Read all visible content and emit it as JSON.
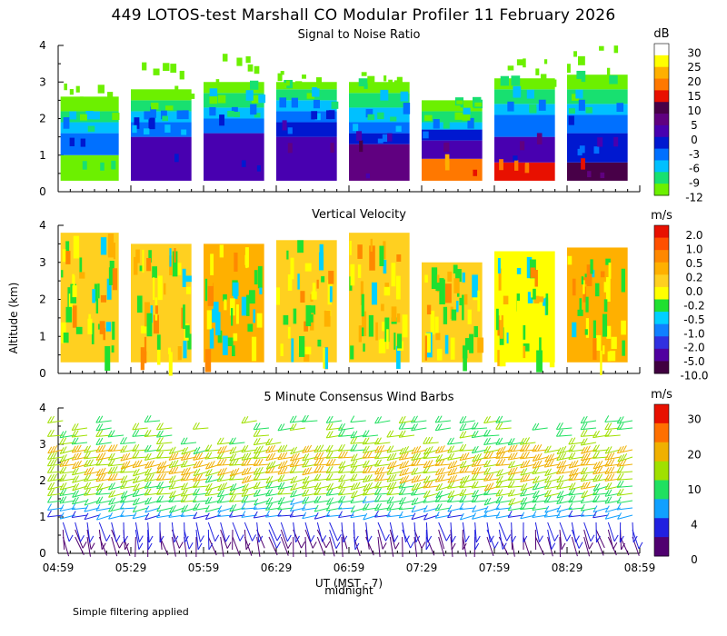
{
  "title": "449 LOTOS-test Marshall CO Modular Profiler 11 February 2026",
  "ylabel": "Altitude (km)",
  "xlabel": "UT (MST - 7)",
  "midnight_label": "midnight",
  "footnote": "Simple filtering applied",
  "colors": {
    "snr_scale": [
      "#6cf000",
      "#18e070",
      "#00c0ff",
      "#0070ff",
      "#0018d0",
      "#4800b0",
      "#600080",
      "#480048",
      "#e81000",
      "#ff7800",
      "#ffb000",
      "#ffff00",
      "#ffffff"
    ],
    "vv_scale": [
      "#400040",
      "#5000a0",
      "#3030e0",
      "#1080ff",
      "#00d0ff",
      "#20e030",
      "#ffff00",
      "#ffd020",
      "#ffb000",
      "#ff8800",
      "#ff5000",
      "#e81000"
    ],
    "wind_scale": [
      "#500070",
      "#2020e0",
      "#10a0ff",
      "#20e060",
      "#a0e000",
      "#f0b000",
      "#ff7000",
      "#e81000"
    ]
  },
  "chart_data": [
    {
      "type": "heatmap",
      "title": "Signal to Noise Ratio",
      "units": "dB",
      "ylim": [
        0,
        4
      ],
      "yticks": [
        "0",
        "1",
        "2",
        "3",
        "4"
      ],
      "x_ticks": [
        "04:59",
        "05:29",
        "05:59",
        "06:29",
        "06:59",
        "07:29",
        "07:59",
        "08:29",
        "08:59"
      ],
      "colorbar_labels": [
        "30",
        "25",
        "20",
        "15",
        "10",
        "5",
        "0",
        "-3",
        "-6",
        "-9",
        "-12"
      ],
      "segments": [
        {
          "start": "05:00",
          "end": "05:24",
          "top_km": 3.0,
          "layers": [
            [
              0.3,
              1.0,
              0
            ],
            [
              1.0,
              1.6,
              3
            ],
            [
              1.6,
              1.9,
              2
            ],
            [
              1.9,
              2.2,
              1
            ],
            [
              2.2,
              2.6,
              0
            ]
          ]
        },
        {
          "start": "05:29",
          "end": "05:54",
          "top_km": 3.5,
          "layers": [
            [
              0.3,
              1.5,
              5
            ],
            [
              1.5,
              1.9,
              3
            ],
            [
              1.9,
              2.2,
              2
            ],
            [
              2.2,
              2.5,
              1
            ],
            [
              2.5,
              2.8,
              0
            ]
          ]
        },
        {
          "start": "05:59",
          "end": "06:24",
          "top_km": 3.5,
          "layers": [
            [
              0.3,
              1.6,
              5
            ],
            [
              1.6,
              2.0,
              3
            ],
            [
              2.0,
              2.3,
              2
            ],
            [
              2.3,
              2.7,
              1
            ],
            [
              2.7,
              3.0,
              0
            ]
          ]
        },
        {
          "start": "06:29",
          "end": "06:54",
          "top_km": 3.0,
          "layers": [
            [
              0.3,
              1.5,
              5
            ],
            [
              1.5,
              1.9,
              4
            ],
            [
              1.9,
              2.2,
              3
            ],
            [
              2.2,
              2.5,
              2
            ],
            [
              2.5,
              2.8,
              1
            ],
            [
              2.8,
              3.0,
              0
            ]
          ]
        },
        {
          "start": "06:59",
          "end": "07:24",
          "top_km": 3.0,
          "layers": [
            [
              0.3,
              1.3,
              6
            ],
            [
              1.3,
              1.6,
              4
            ],
            [
              1.6,
              1.9,
              3
            ],
            [
              1.9,
              2.3,
              2
            ],
            [
              2.3,
              2.7,
              1
            ],
            [
              2.7,
              3.0,
              0
            ]
          ]
        },
        {
          "start": "07:29",
          "end": "07:54",
          "top_km": 2.5,
          "layers": [
            [
              0.3,
              0.9,
              9
            ],
            [
              0.9,
              1.4,
              5
            ],
            [
              1.4,
              1.7,
              4
            ],
            [
              1.7,
              1.9,
              2
            ],
            [
              1.9,
              2.2,
              1
            ],
            [
              2.2,
              2.5,
              0
            ]
          ]
        },
        {
          "start": "07:59",
          "end": "08:24",
          "top_km": 3.2,
          "layers": [
            [
              0.3,
              0.8,
              8
            ],
            [
              0.8,
              1.5,
              5
            ],
            [
              1.5,
              2.1,
              3
            ],
            [
              2.1,
              2.4,
              2
            ],
            [
              2.4,
              2.8,
              1
            ],
            [
              2.8,
              3.1,
              0
            ]
          ]
        },
        {
          "start": "08:29",
          "end": "08:54",
          "top_km": 3.4,
          "layers": [
            [
              0.3,
              0.8,
              7
            ],
            [
              0.8,
              1.6,
              4
            ],
            [
              1.6,
              2.1,
              3
            ],
            [
              2.1,
              2.4,
              2
            ],
            [
              2.4,
              2.8,
              1
            ],
            [
              2.8,
              3.2,
              0
            ]
          ]
        }
      ]
    },
    {
      "type": "heatmap",
      "title": "Vertical Velocity",
      "units": "m/s",
      "ylim": [
        0,
        4
      ],
      "yticks": [
        "0",
        "1",
        "2",
        "3",
        "4"
      ],
      "x_ticks": [
        "04:59",
        "05:29",
        "05:59",
        "06:29",
        "06:59",
        "07:29",
        "07:59",
        "08:29",
        "08:59"
      ],
      "colorbar_labels": [
        "2.0",
        "1.0",
        "0.5",
        "0.2",
        "0.0",
        "-0.2",
        "-0.5",
        "-1.0",
        "-2.0",
        "-5.0",
        "-10.0"
      ],
      "segments": [
        {
          "start": "05:00",
          "end": "05:24",
          "top_km": 3.8,
          "dominant": "0.0 to 0.2"
        },
        {
          "start": "05:29",
          "end": "05:54",
          "top_km": 3.5,
          "dominant": "0.0 to 0.2"
        },
        {
          "start": "05:59",
          "end": "06:24",
          "top_km": 3.5,
          "dominant": "0.2 to 0.5"
        },
        {
          "start": "06:29",
          "end": "06:54",
          "top_km": 3.6,
          "dominant": "0.0 to 0.2"
        },
        {
          "start": "06:59",
          "end": "07:24",
          "top_km": 3.8,
          "dominant": "0.0 to 0.2"
        },
        {
          "start": "07:29",
          "end": "07:54",
          "top_km": 3.0,
          "dominant": "0.0 to 0.2"
        },
        {
          "start": "07:59",
          "end": "08:24",
          "top_km": 3.3,
          "dominant": "-0.2 to 0.0"
        },
        {
          "start": "08:29",
          "end": "08:54",
          "top_km": 3.4,
          "dominant": "0.2 to 0.5"
        }
      ]
    },
    {
      "type": "wind_barbs",
      "title": "5 Minute Consensus Wind Barbs",
      "units": "m/s",
      "ylim": [
        0,
        4
      ],
      "yticks": [
        "0",
        "1",
        "2",
        "3",
        "4"
      ],
      "x_ticks": [
        "04:59",
        "05:29",
        "05:59",
        "06:29",
        "06:59",
        "07:29",
        "07:59",
        "08:29",
        "08:59"
      ],
      "colorbar_labels": [
        "30",
        "20",
        "10",
        "4",
        "0"
      ],
      "speed_profile_mps": [
        {
          "alt_km": 0.5,
          "speed": 2
        },
        {
          "alt_km": 1.0,
          "speed": 5
        },
        {
          "alt_km": 1.5,
          "speed": 9
        },
        {
          "alt_km": 2.0,
          "speed": 12
        },
        {
          "alt_km": 2.5,
          "speed": 14
        },
        {
          "alt_km": 3.0,
          "speed": 11
        },
        {
          "alt_km": 3.5,
          "speed": 9
        }
      ]
    }
  ]
}
